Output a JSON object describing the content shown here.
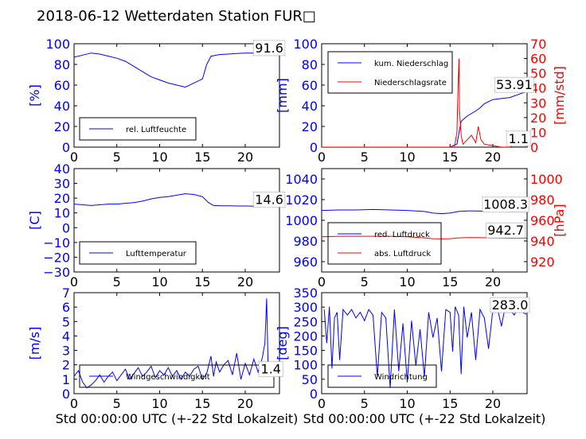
{
  "title": "2018-06-12 Wetterdaten Station FUR□",
  "colors": {
    "primary": "#0000ff",
    "secondary": "#ff0000",
    "text": "#000000",
    "annotation_box": "#999999"
  },
  "chart_data": [
    {
      "type": "line",
      "panel": "top-left",
      "ylabel": "[%]",
      "xlim": [
        0,
        24
      ],
      "ylim": [
        0,
        100
      ],
      "xticks": [
        "0",
        "5",
        "10",
        "15",
        "20"
      ],
      "yticks": [
        "0",
        "20",
        "40",
        "60",
        "80",
        "100"
      ],
      "legend": {
        "placement": "lower-left",
        "entries": [
          "rel. Luftfeuchte"
        ]
      },
      "annotations": [
        {
          "text": "91.6",
          "x": 22.8,
          "y": 91.6
        }
      ],
      "series": [
        {
          "name": "rel. Luftfeuchte",
          "color": "#0000ff",
          "x": [
            0,
            1,
            2,
            3,
            4,
            5,
            6,
            7,
            8,
            9,
            10,
            11,
            12,
            13,
            14,
            15,
            15.5,
            16,
            17,
            18,
            19,
            20,
            21,
            22,
            23,
            23.9
          ],
          "y": [
            87,
            89,
            91,
            90,
            88,
            86,
            83,
            78,
            73,
            68,
            65,
            62,
            60,
            58,
            62,
            66,
            80,
            88,
            89.5,
            90,
            90.5,
            91,
            91,
            91.3,
            91.5,
            91.6
          ]
        }
      ]
    },
    {
      "type": "line",
      "panel": "top-right",
      "ylabel": "[mm]",
      "ylabel_right": "[mm/std]",
      "xlim": [
        0,
        24
      ],
      "ylim": [
        0,
        100
      ],
      "ylim_right": [
        0,
        70
      ],
      "xticks": [
        "0",
        "5",
        "10",
        "15",
        "20"
      ],
      "yticks": [
        "0",
        "20",
        "40",
        "60",
        "80",
        "100"
      ],
      "yticks_right": [
        "0",
        "10",
        "20",
        "30",
        "40",
        "50",
        "60",
        "70"
      ],
      "legend": {
        "placement": "upper-left",
        "entries": [
          "kum. Niederschlag",
          "Niederschlagsrate"
        ]
      },
      "annotations": [
        {
          "text": "53.91",
          "x": 22.5,
          "y": 56
        },
        {
          "text": "1.1",
          "x": 23,
          "y": 4
        }
      ],
      "series": [
        {
          "name": "kum. Niederschlag",
          "color": "#0000ff",
          "axis": "left",
          "x": [
            0,
            15,
            15.8,
            16.3,
            17,
            18,
            18.5,
            19,
            20,
            21,
            22,
            23,
            24
          ],
          "y": [
            0,
            0,
            3,
            25,
            30,
            35,
            38,
            42,
            46,
            47,
            48,
            51,
            53.9
          ]
        },
        {
          "name": "Niederschlagsrate",
          "color": "#ff0000",
          "axis": "right",
          "x": [
            0,
            15.5,
            15.8,
            15.95,
            16.05,
            16.1,
            16.3,
            16.5,
            17,
            17.5,
            18,
            18.3,
            18.6,
            19,
            20,
            21,
            22,
            22.5,
            23,
            23.5,
            24
          ],
          "y": [
            0,
            0,
            10,
            45,
            60,
            25,
            8,
            2,
            5,
            8,
            3,
            14,
            5,
            2,
            1,
            0,
            0,
            2,
            4,
            2,
            1
          ]
        }
      ]
    },
    {
      "type": "line",
      "panel": "middle-left",
      "ylabel": "[C]",
      "xlim": [
        0,
        24
      ],
      "ylim": [
        -30,
        40
      ],
      "xticks": [
        "0",
        "5",
        "10",
        "15",
        "20"
      ],
      "yticks": [
        "−30",
        "−20",
        "−10",
        "0",
        "10",
        "20",
        "30",
        "40"
      ],
      "legend": {
        "placement": "lower-left",
        "entries": [
          "Lufttemperatur"
        ]
      },
      "annotations": [
        {
          "text": "14.6",
          "x": 22.8,
          "y": 16
        }
      ],
      "series": [
        {
          "name": "Lufttemperatur",
          "color": "#0000ff",
          "x": [
            0,
            1,
            2,
            3,
            4,
            5,
            6,
            7,
            8,
            9,
            10,
            11,
            12,
            13,
            14,
            15,
            15.7,
            16.3,
            17,
            18,
            19,
            20,
            21,
            22,
            23,
            23.9
          ],
          "y": [
            16,
            15.5,
            15,
            15.5,
            16,
            16,
            16.5,
            17,
            18,
            19.5,
            20.5,
            21,
            22,
            23,
            22.5,
            21,
            17,
            15,
            14.8,
            14.8,
            14.7,
            14.7,
            14.6,
            14.6,
            14.6,
            14.6
          ]
        }
      ]
    },
    {
      "type": "line",
      "panel": "middle-right",
      "ylabel_right": "[hPa]",
      "xlim": [
        0,
        24
      ],
      "ylim": [
        950,
        1050
      ],
      "ylim_right": [
        910,
        1010
      ],
      "xticks": [
        "0",
        "5",
        "10",
        "15",
        "20"
      ],
      "yticks": [
        "960",
        "980",
        "1000",
        "1020",
        "1040"
      ],
      "yticks_right": [
        "920",
        "940",
        "960",
        "980",
        "1000"
      ],
      "legend": {
        "placement": "lower-left",
        "entries": [
          "red. Luftdruck",
          "abs. Luftdruck"
        ]
      },
      "annotations": [
        {
          "text": "1008.3",
          "x": 21.5,
          "y": 1011
        },
        {
          "text": "942.7",
          "x": 21.5,
          "y": 986
        }
      ],
      "series": [
        {
          "name": "red. Luftdruck",
          "color": "#0000ff",
          "axis": "left",
          "x": [
            0,
            2,
            4,
            6,
            8,
            10,
            12,
            13,
            14,
            15,
            16,
            17,
            18,
            20,
            22,
            24
          ],
          "y": [
            1009.5,
            1010,
            1010,
            1010.5,
            1010,
            1009.5,
            1008.5,
            1007,
            1006.5,
            1007,
            1008.5,
            1009,
            1009,
            1008.5,
            1008.3,
            1008.3
          ]
        },
        {
          "name": "abs. Luftdruck",
          "color": "#ff0000",
          "axis": "right",
          "x": [
            0,
            2,
            4,
            6,
            8,
            10,
            12,
            13,
            14,
            15,
            16,
            17,
            18,
            20,
            22,
            24
          ],
          "y": [
            944,
            944.5,
            944.5,
            944.5,
            944.5,
            944,
            943,
            942.2,
            942,
            942.2,
            943,
            943.2,
            943.2,
            943,
            942.7,
            942.7
          ]
        }
      ]
    },
    {
      "type": "line",
      "panel": "bottom-left",
      "ylabel": "[m/s]",
      "xlabel": "Std 00:00:00 UTC (+-22 Std Lokalzeit)",
      "xlim": [
        0,
        24
      ],
      "ylim": [
        0,
        7
      ],
      "xticks": [
        "0",
        "5",
        "10",
        "15",
        "20"
      ],
      "yticks": [
        "0",
        "1",
        "2",
        "3",
        "4",
        "5",
        "6",
        "7"
      ],
      "legend": {
        "placement": "lower-left",
        "entries": [
          "Windgeschwindigkeit"
        ]
      },
      "annotations": [
        {
          "text": "1.4",
          "x": 23,
          "y": 1.4
        }
      ],
      "series": [
        {
          "name": "Windgeschwindigkeit",
          "color": "#0000ff",
          "x": [
            0,
            0.5,
            1,
            1.5,
            2,
            2.5,
            3,
            3.5,
            4,
            4.5,
            5,
            5.5,
            6,
            6.5,
            7,
            7.5,
            8,
            8.5,
            9,
            9.5,
            10,
            10.5,
            11,
            11.5,
            12,
            12.5,
            13,
            13.5,
            14,
            14.5,
            15,
            15.5,
            16,
            16.3,
            16.6,
            17,
            17.5,
            18,
            18.5,
            19,
            19.5,
            20,
            20.5,
            21,
            21.5,
            22,
            22.3,
            22.5,
            22.7,
            23,
            23.5,
            24
          ],
          "y": [
            1.2,
            1.6,
            0.8,
            0.4,
            0.6,
            0.9,
            1.3,
            0.8,
            1.2,
            1.5,
            0.9,
            1.3,
            1.7,
            1.0,
            1.4,
            1.8,
            1.2,
            1.5,
            1.9,
            1.1,
            1.6,
            1.3,
            1.8,
            1.2,
            1.6,
            1.0,
            1.5,
            1.2,
            1.7,
            1.9,
            1.0,
            1.4,
            2.6,
            1.2,
            2.2,
            1.5,
            2.0,
            2.3,
            1.3,
            2.8,
            1.0,
            2.1,
            1.3,
            2.4,
            1.5,
            2.5,
            3.5,
            6.6,
            1.2,
            1.8,
            1.6,
            1.3
          ]
        }
      ]
    },
    {
      "type": "line",
      "panel": "bottom-right",
      "ylabel": "[deg]",
      "xlabel": "Std 00:00:00 UTC (+-22 Std Lokalzeit)",
      "xlim": [
        0,
        24
      ],
      "ylim": [
        0,
        360
      ],
      "xticks": [
        "0",
        "5",
        "10",
        "15",
        "20"
      ],
      "yticks": [
        "0",
        "50",
        "100",
        "150",
        "200",
        "250",
        "300",
        "350"
      ],
      "legend": {
        "placement": "lower-left",
        "entries": [
          "Windrichtung"
        ]
      },
      "annotations": [
        {
          "text": "283.0",
          "x": 22,
          "y": 300
        }
      ],
      "series": [
        {
          "name": "Windrichtung",
          "color": "#0000ff",
          "x": [
            0.3,
            0.6,
            0.9,
            1.2,
            1.5,
            1.8,
            2.1,
            2.5,
            3,
            3.5,
            4,
            4.5,
            5,
            5.5,
            6,
            6.5,
            7,
            7.5,
            8,
            8.5,
            9,
            9.5,
            10,
            10.5,
            11,
            11.5,
            12,
            12.5,
            13,
            13.5,
            14,
            14.5,
            15,
            15.3,
            15.6,
            16,
            16.3,
            16.6,
            17,
            17.5,
            18,
            18.5,
            19,
            19.5,
            20,
            20.5,
            21,
            21.5,
            22,
            22.5,
            23,
            23.5,
            23.9
          ],
          "y": [
            300,
            180,
            310,
            90,
            270,
            290,
            120,
            300,
            280,
            300,
            270,
            290,
            260,
            300,
            280,
            60,
            290,
            270,
            20,
            300,
            80,
            250,
            40,
            260,
            100,
            230,
            60,
            290,
            200,
            270,
            80,
            300,
            290,
            150,
            310,
            280,
            70,
            310,
            200,
            290,
            120,
            300,
            270,
            160,
            300,
            310,
            240,
            320,
            300,
            280,
            315,
            290,
            283
          ]
        }
      ]
    }
  ]
}
